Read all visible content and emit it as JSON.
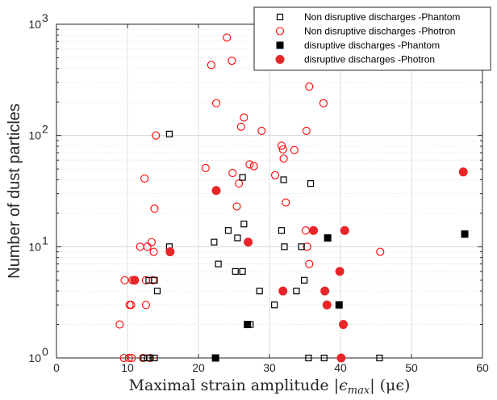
{
  "chart_data": {
    "type": "scatter",
    "title": "",
    "xlabel": "Maximal strain amplitude |ϵmax| (μϵ)",
    "xlabel_parts": {
      "before": "Maximal strain amplitude |",
      "symbol": "ϵ",
      "subscript": "max",
      "after": "| (μϵ)"
    },
    "ylabel": "Number of dust particles",
    "x_scale": "linear",
    "y_scale": "log",
    "xlim": [
      0,
      60
    ],
    "ylim": [
      1,
      1000
    ],
    "x_ticks": [
      0,
      10,
      20,
      30,
      40,
      50,
      60
    ],
    "y_ticks": [
      {
        "value": 1,
        "base": "10",
        "exp": "0"
      },
      {
        "value": 10,
        "base": "10",
        "exp": "1"
      },
      {
        "value": 100,
        "base": "10",
        "exp": "2"
      },
      {
        "value": 1000,
        "base": "10",
        "exp": "3"
      }
    ],
    "grid": true,
    "legend_position": "top-right",
    "series": [
      {
        "name": "Non disruptive discharges -Phantom",
        "marker": "square-open",
        "color": "#000000",
        "points": [
          [
            15.9,
            103
          ],
          [
            15.9,
            10
          ],
          [
            13.0,
            5
          ],
          [
            13.8,
            5
          ],
          [
            14.2,
            4
          ],
          [
            22.2,
            11
          ],
          [
            22.8,
            7
          ],
          [
            24.2,
            14
          ],
          [
            25.5,
            12
          ],
          [
            26.2,
            42
          ],
          [
            26.4,
            16
          ],
          [
            25.2,
            6
          ],
          [
            26.2,
            6
          ],
          [
            28.6,
            4
          ],
          [
            30.7,
            3
          ],
          [
            32.0,
            40
          ],
          [
            35.8,
            37
          ],
          [
            31.7,
            14
          ],
          [
            32.1,
            10
          ],
          [
            34.5,
            10
          ],
          [
            33.8,
            4
          ],
          [
            34.9,
            5
          ],
          [
            12.3,
            1
          ],
          [
            12.8,
            1
          ],
          [
            13.1,
            1
          ],
          [
            13.8,
            1
          ],
          [
            35.5,
            1
          ],
          [
            37.7,
            1
          ],
          [
            45.5,
            1
          ],
          [
            27.3,
            2
          ]
        ]
      },
      {
        "name": "Non disruptive discharges -Photron",
        "marker": "circle-open",
        "color": "#ff0000",
        "points": [
          [
            24.0,
            760
          ],
          [
            21.8,
            430
          ],
          [
            24.7,
            470
          ],
          [
            22.5,
            195
          ],
          [
            35.6,
            275
          ],
          [
            37.6,
            195
          ],
          [
            26.4,
            145
          ],
          [
            26.0,
            120
          ],
          [
            28.9,
            110
          ],
          [
            35.2,
            110
          ],
          [
            31.7,
            81
          ],
          [
            31.9,
            75
          ],
          [
            33.5,
            74
          ],
          [
            32.0,
            62
          ],
          [
            27.2,
            55
          ],
          [
            27.8,
            53
          ],
          [
            21.0,
            51
          ],
          [
            24.8,
            46
          ],
          [
            30.8,
            44
          ],
          [
            25.7,
            37
          ],
          [
            32.3,
            25
          ],
          [
            25.4,
            23
          ],
          [
            14.0,
            100
          ],
          [
            12.4,
            41
          ],
          [
            13.8,
            22
          ],
          [
            13.4,
            11
          ],
          [
            12.8,
            10
          ],
          [
            11.8,
            10
          ],
          [
            13.7,
            9
          ],
          [
            12.6,
            5
          ],
          [
            13.6,
            5
          ],
          [
            9.6,
            5
          ],
          [
            10.7,
            5
          ],
          [
            10.3,
            3
          ],
          [
            10.5,
            3
          ],
          [
            12.6,
            3
          ],
          [
            8.9,
            2
          ],
          [
            35.3,
            10
          ],
          [
            35.1,
            14
          ],
          [
            35.6,
            7
          ],
          [
            45.6,
            9
          ],
          [
            9.5,
            1
          ],
          [
            10.2,
            1
          ],
          [
            10.6,
            1
          ],
          [
            12.2,
            1
          ],
          [
            13.2,
            1
          ]
        ]
      },
      {
        "name": "disruptive discharges -Phantom",
        "marker": "square-filled",
        "color": "#000000",
        "points": [
          [
            57.5,
            13
          ],
          [
            38.2,
            12
          ],
          [
            39.8,
            3
          ],
          [
            26.9,
            2
          ],
          [
            22.4,
            1
          ]
        ]
      },
      {
        "name": "disruptive discharges -Photron",
        "marker": "circle-filled",
        "color": "#e8262a",
        "points": [
          [
            57.3,
            47
          ],
          [
            22.5,
            32
          ],
          [
            40.6,
            14
          ],
          [
            36.2,
            14
          ],
          [
            27.0,
            11
          ],
          [
            16.0,
            9
          ],
          [
            11.0,
            5
          ],
          [
            39.9,
            6
          ],
          [
            31.9,
            4
          ],
          [
            37.8,
            4
          ],
          [
            38.1,
            3
          ],
          [
            40.4,
            2
          ],
          [
            40.1,
            1
          ]
        ]
      }
    ]
  }
}
